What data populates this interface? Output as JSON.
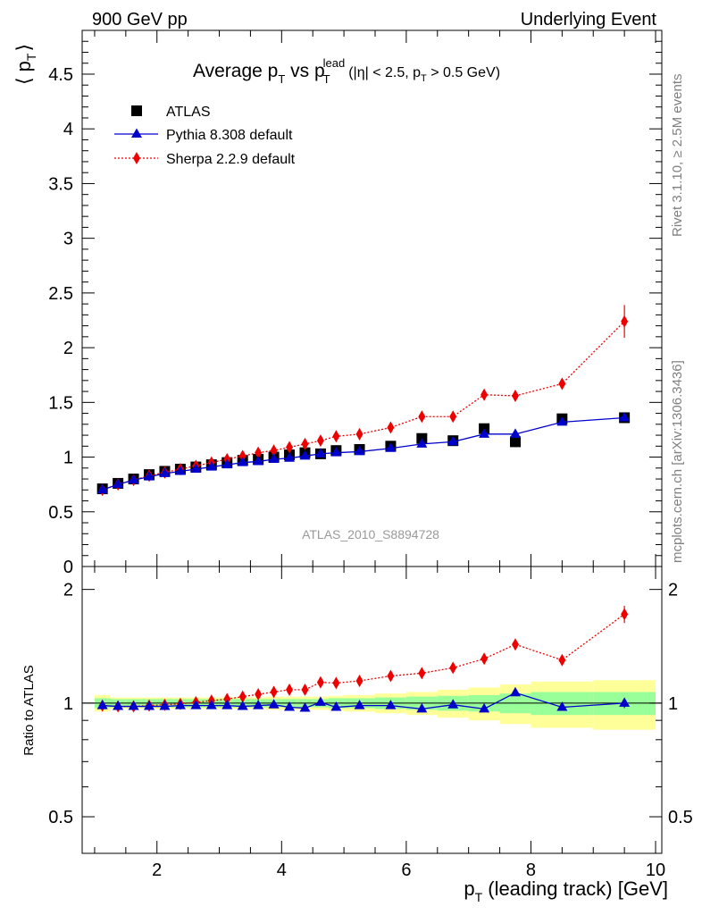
{
  "header": {
    "left": "900 GeV pp",
    "right": "Underlying Event"
  },
  "side_labels": {
    "rivet": "Rivet 3.1.10, ≥ 2.5M events",
    "mcplots": "mcplots.cern.ch [arXiv:1306.3436]"
  },
  "title": {
    "main": "Average p",
    "main_sub": "T",
    "vs": " vs p",
    "vs_sub": "T",
    "vs_sup": "lead",
    "cuts_a": "(|η| < 2.5, p",
    "cuts_sub": "T",
    "cuts_b": " > 0.5 GeV)"
  },
  "watermark": "ATLAS_2010_S8894728",
  "axis": {
    "ylabel_top_left": "⟨ p",
    "ylabel_top_sub": "T",
    "ylabel_top_right": "⟩",
    "ylabel_bottom": "Ratio to ATLAS",
    "xlabel_main": "p",
    "xlabel_sub": "T",
    "xlabel_rest": " (leading track) [GeV]"
  },
  "colors": {
    "atlas": "#000000",
    "pythia": "#0000cc",
    "sherpa": "#ee0000",
    "band_inner": "#99ff99",
    "band_outer": "#ffff99"
  },
  "chart_data": [
    {
      "type": "scatter",
      "panel": "main",
      "xlim": [
        0.8,
        10.1
      ],
      "ylim": [
        0,
        4.9
      ],
      "x_ticks": [
        2,
        4,
        6,
        8,
        10
      ],
      "y_ticks": [
        0,
        0.5,
        1,
        1.5,
        2,
        2.5,
        3,
        3.5,
        4,
        4.5
      ],
      "y_tick_labels": [
        "0",
        "0.5",
        "1",
        "1.5",
        "2",
        "2.5",
        "3",
        "3.5",
        "4",
        "4.5"
      ],
      "legend_position": "top-left",
      "series": [
        {
          "name": "ATLAS",
          "marker": "square",
          "color": "#000000",
          "x": [
            1.125,
            1.375,
            1.625,
            1.875,
            2.125,
            2.375,
            2.625,
            2.875,
            3.125,
            3.375,
            3.625,
            3.875,
            4.125,
            4.375,
            4.625,
            4.875,
            5.25,
            5.75,
            6.25,
            6.75,
            7.25,
            7.75,
            8.5,
            9.5
          ],
          "y": [
            0.71,
            0.76,
            0.8,
            0.84,
            0.87,
            0.89,
            0.91,
            0.93,
            0.95,
            0.97,
            0.98,
            1.0,
            1.02,
            1.04,
            1.03,
            1.06,
            1.07,
            1.1,
            1.17,
            1.15,
            1.26,
            1.14,
            1.35,
            1.36
          ]
        },
        {
          "name": "Pythia 8.308 default",
          "marker": "triangle",
          "line": "solid",
          "color": "#0000cc",
          "x": [
            1.125,
            1.375,
            1.625,
            1.875,
            2.125,
            2.375,
            2.625,
            2.875,
            3.125,
            3.375,
            3.625,
            3.875,
            4.125,
            4.375,
            4.625,
            4.875,
            5.25,
            5.75,
            6.25,
            6.75,
            7.25,
            7.75,
            8.5,
            9.5
          ],
          "y": [
            0.7,
            0.75,
            0.79,
            0.82,
            0.85,
            0.87,
            0.89,
            0.91,
            0.93,
            0.95,
            0.96,
            0.98,
            0.99,
            1.01,
            1.03,
            1.04,
            1.05,
            1.08,
            1.12,
            1.14,
            1.21,
            1.21,
            1.32,
            1.36
          ],
          "yerr": [
            0,
            0,
            0,
            0,
            0,
            0,
            0,
            0,
            0,
            0,
            0,
            0,
            0,
            0,
            0,
            0,
            0,
            0,
            0,
            0,
            0,
            0,
            0,
            0.03
          ]
        },
        {
          "name": "Sherpa 2.2.9 default",
          "marker": "diamond",
          "line": "dotted",
          "color": "#ee0000",
          "x": [
            1.125,
            1.375,
            1.625,
            1.875,
            2.125,
            2.375,
            2.625,
            2.875,
            3.125,
            3.375,
            3.625,
            3.875,
            4.125,
            4.375,
            4.625,
            4.875,
            5.25,
            5.75,
            6.25,
            6.75,
            7.25,
            7.75,
            8.5,
            9.5
          ],
          "y": [
            0.7,
            0.75,
            0.79,
            0.83,
            0.86,
            0.89,
            0.92,
            0.95,
            0.98,
            1.01,
            1.04,
            1.06,
            1.09,
            1.12,
            1.15,
            1.19,
            1.21,
            1.27,
            1.37,
            1.37,
            1.57,
            1.56,
            1.67,
            2.24
          ],
          "yerr": [
            0,
            0,
            0,
            0,
            0,
            0,
            0,
            0,
            0,
            0,
            0,
            0,
            0.02,
            0.02,
            0.02,
            0.02,
            0.02,
            0.03,
            0.03,
            0.03,
            0.05,
            0.05,
            0.05,
            0.15
          ]
        }
      ]
    },
    {
      "type": "scatter",
      "panel": "ratio",
      "xlim": [
        0.8,
        10.1
      ],
      "ylim": [
        0.4,
        2.3
      ],
      "x_ticks": [
        2,
        4,
        6,
        8,
        10
      ],
      "x_tick_labels": [
        "2",
        "4",
        "6",
        "8",
        "10"
      ],
      "y_ticks": [
        0.5,
        1,
        2
      ],
      "y_tick_labels": [
        "0.5",
        "1",
        "2"
      ],
      "reference_line": 1,
      "bands": {
        "edges": [
          1.0,
          1.25,
          1.5,
          1.75,
          2.0,
          2.25,
          2.5,
          2.75,
          3.0,
          3.25,
          3.5,
          3.75,
          4.0,
          4.25,
          4.5,
          4.75,
          5.0,
          5.5,
          6.0,
          6.5,
          7.0,
          7.5,
          8.0,
          9.0,
          10.0
        ],
        "inner": [
          0.03,
          0.025,
          0.025,
          0.025,
          0.025,
          0.025,
          0.025,
          0.025,
          0.025,
          0.025,
          0.025,
          0.025,
          0.025,
          0.025,
          0.025,
          0.03,
          0.03,
          0.035,
          0.04,
          0.045,
          0.05,
          0.06,
          0.07,
          0.07
        ],
        "outer": [
          0.05,
          0.035,
          0.035,
          0.035,
          0.035,
          0.035,
          0.035,
          0.035,
          0.035,
          0.035,
          0.035,
          0.04,
          0.04,
          0.04,
          0.04,
          0.045,
          0.05,
          0.06,
          0.07,
          0.085,
          0.1,
          0.12,
          0.14,
          0.15
        ]
      },
      "series": [
        {
          "name": "Pythia 8.308 default",
          "marker": "triangle",
          "line": "solid",
          "color": "#0000cc",
          "x": [
            1.125,
            1.375,
            1.625,
            1.875,
            2.125,
            2.375,
            2.625,
            2.875,
            3.125,
            3.375,
            3.625,
            3.875,
            4.125,
            4.375,
            4.625,
            4.875,
            5.25,
            5.75,
            6.25,
            6.75,
            7.25,
            7.75,
            8.5,
            9.5
          ],
          "y": [
            0.985,
            0.98,
            0.98,
            0.98,
            0.98,
            0.985,
            0.985,
            0.985,
            0.985,
            0.98,
            0.985,
            0.99,
            0.975,
            0.97,
            1.005,
            0.975,
            0.985,
            0.985,
            0.965,
            0.99,
            0.965,
            1.065,
            0.975,
            1.0
          ],
          "yerr": [
            0,
            0,
            0,
            0,
            0,
            0,
            0,
            0,
            0,
            0,
            0,
            0,
            0,
            0,
            0,
            0,
            0,
            0,
            0,
            0,
            0,
            0,
            0,
            0.03
          ]
        },
        {
          "name": "Sherpa 2.2.9 default",
          "marker": "diamond",
          "line": "dotted",
          "color": "#ee0000",
          "x": [
            1.125,
            1.375,
            1.625,
            1.875,
            2.125,
            2.375,
            2.625,
            2.875,
            3.125,
            3.375,
            3.625,
            3.875,
            4.125,
            4.375,
            4.625,
            4.875,
            5.25,
            5.75,
            6.25,
            6.75,
            7.25,
            7.75,
            8.5,
            9.5
          ],
          "y": [
            0.985,
            0.98,
            0.98,
            0.985,
            0.99,
            0.995,
            1.005,
            1.015,
            1.025,
            1.04,
            1.055,
            1.07,
            1.085,
            1.085,
            1.135,
            1.13,
            1.145,
            1.18,
            1.2,
            1.24,
            1.31,
            1.43,
            1.3,
            1.72
          ],
          "yerr": [
            0,
            0,
            0,
            0,
            0,
            0,
            0,
            0,
            0,
            0,
            0,
            0,
            0,
            0,
            0,
            0,
            0,
            0,
            0.02,
            0.02,
            0.04,
            0.04,
            0.04,
            0.09
          ]
        }
      ]
    }
  ]
}
